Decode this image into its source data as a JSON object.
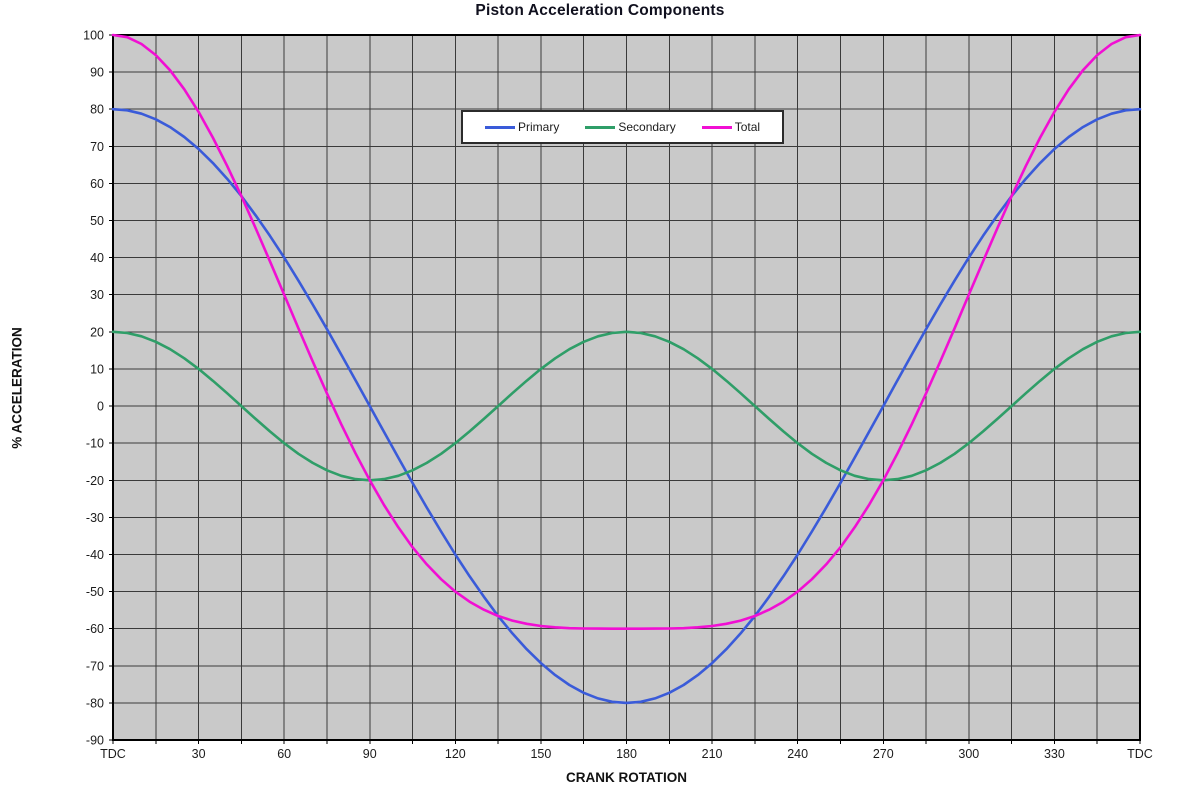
{
  "page": {
    "background": "#ffffff"
  },
  "chart_data": {
    "type": "line",
    "title": "Piston Acceleration Components",
    "xlabel": "CRANK ROTATION",
    "ylabel": "% ACCELERATION",
    "xlim": [
      0,
      360
    ],
    "ylim": [
      -90,
      100
    ],
    "x_grid_step": 15,
    "y_grid_step": 10,
    "grid": true,
    "legend_position": "top-center-inside",
    "plot_bg_color": "#c9c9c9",
    "grid_color": "#3a3a3a",
    "axis_color": "#000000",
    "tick_label_color": "#1c1c1c",
    "x_ticks": [
      {
        "value": 0,
        "label": "TDC"
      },
      {
        "value": 30,
        "label": "30"
      },
      {
        "value": 60,
        "label": "60"
      },
      {
        "value": 90,
        "label": "90"
      },
      {
        "value": 120,
        "label": "120"
      },
      {
        "value": 150,
        "label": "150"
      },
      {
        "value": 180,
        "label": "180"
      },
      {
        "value": 210,
        "label": "210"
      },
      {
        "value": 240,
        "label": "240"
      },
      {
        "value": 270,
        "label": "270"
      },
      {
        "value": 300,
        "label": "300"
      },
      {
        "value": 330,
        "label": "330"
      },
      {
        "value": 360,
        "label": "TDC"
      }
    ],
    "y_ticks": [
      100,
      90,
      80,
      70,
      60,
      50,
      40,
      30,
      20,
      10,
      0,
      -10,
      -20,
      -30,
      -40,
      -50,
      -60,
      -70,
      -80,
      -90
    ],
    "x": [
      0,
      5,
      10,
      15,
      20,
      25,
      30,
      35,
      40,
      45,
      50,
      55,
      60,
      65,
      70,
      75,
      80,
      85,
      90,
      95,
      100,
      105,
      110,
      115,
      120,
      125,
      130,
      135,
      140,
      145,
      150,
      155,
      160,
      165,
      170,
      175,
      180,
      185,
      190,
      195,
      200,
      205,
      210,
      215,
      220,
      225,
      230,
      235,
      240,
      245,
      250,
      255,
      260,
      265,
      270,
      275,
      280,
      285,
      290,
      295,
      300,
      305,
      310,
      315,
      320,
      325,
      330,
      335,
      340,
      345,
      350,
      355,
      360
    ],
    "series": [
      {
        "name": "Primary",
        "color": "#3a5bd9",
        "values": [
          80,
          79.7,
          78.78,
          77.27,
          75.18,
          72.5,
          69.28,
          65.53,
          61.28,
          56.57,
          51.42,
          45.89,
          40,
          33.81,
          27.36,
          20.71,
          13.89,
          6.97,
          0,
          -6.97,
          -13.89,
          -20.71,
          -27.36,
          -33.81,
          -40,
          -45.89,
          -51.42,
          -56.57,
          -61.28,
          -65.53,
          -69.28,
          -72.5,
          -75.18,
          -77.27,
          -78.78,
          -79.7,
          -80,
          -79.7,
          -78.78,
          -77.27,
          -75.18,
          -72.5,
          -69.28,
          -65.53,
          -61.28,
          -56.57,
          -51.42,
          -45.89,
          -40,
          -33.81,
          -27.36,
          -20.71,
          -13.89,
          -6.97,
          0,
          6.97,
          13.89,
          20.71,
          27.36,
          33.81,
          40,
          45.89,
          51.42,
          56.57,
          61.28,
          65.53,
          69.28,
          72.5,
          75.18,
          77.27,
          78.78,
          79.7,
          80
        ]
      },
      {
        "name": "Secondary",
        "color": "#2f9e68",
        "values": [
          20,
          19.7,
          18.79,
          17.32,
          15.32,
          12.86,
          10,
          6.84,
          3.47,
          0,
          -3.47,
          -6.84,
          -10,
          -12.86,
          -15.32,
          -17.32,
          -18.79,
          -19.7,
          -20,
          -19.7,
          -18.79,
          -17.32,
          -15.32,
          -12.86,
          -10,
          -6.84,
          -3.47,
          0,
          3.47,
          6.84,
          10,
          12.86,
          15.32,
          17.32,
          18.79,
          19.7,
          20,
          19.7,
          18.79,
          17.32,
          15.32,
          12.86,
          10,
          6.84,
          3.47,
          0,
          -3.47,
          -6.84,
          -10,
          -12.86,
          -15.32,
          -17.32,
          -18.79,
          -19.7,
          -20,
          -19.7,
          -18.79,
          -17.32,
          -15.32,
          -12.86,
          -10,
          -6.84,
          -3.47,
          0,
          3.47,
          6.84,
          10,
          12.86,
          15.32,
          17.32,
          18.79,
          19.7,
          20
        ]
      },
      {
        "name": "Total",
        "color": "#f10fd3",
        "values": [
          100,
          99.4,
          97.57,
          94.59,
          90.5,
          85.36,
          79.28,
          72.37,
          64.75,
          56.57,
          47.95,
          39.05,
          30,
          20.95,
          12.04,
          3.39,
          -4.9,
          -12.73,
          -20,
          -26.67,
          -32.68,
          -38.03,
          -42.68,
          -46.67,
          -50,
          -52.73,
          -54.89,
          -56.57,
          -57.81,
          -58.69,
          -59.28,
          -59.64,
          -59.86,
          -59.95,
          -59.99,
          -60,
          -60,
          -60,
          -59.99,
          -59.95,
          -59.86,
          -59.64,
          -59.28,
          -58.69,
          -57.81,
          -56.57,
          -54.89,
          -52.73,
          -50,
          -46.67,
          -42.68,
          -38.03,
          -32.68,
          -26.67,
          -20,
          -12.73,
          -4.9,
          3.39,
          12.04,
          20.95,
          30,
          39.05,
          47.95,
          56.57,
          64.75,
          72.37,
          79.28,
          85.36,
          90.5,
          94.59,
          97.57,
          99.4,
          100
        ]
      }
    ]
  }
}
